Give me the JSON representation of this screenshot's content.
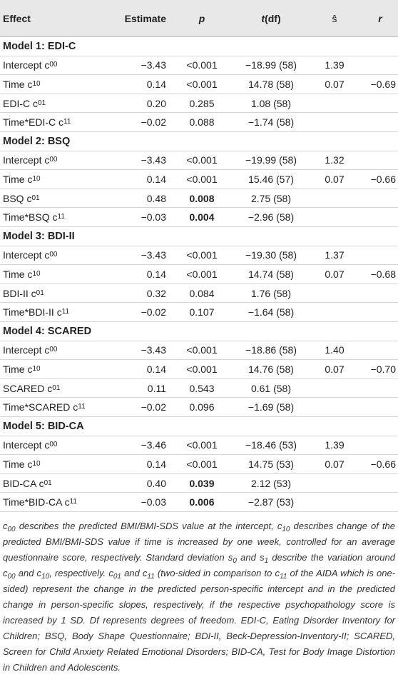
{
  "header": {
    "effect": "Effect",
    "estimate": "Estimate",
    "p": "p",
    "t": [
      "t",
      "(df)"
    ],
    "s": "ŝ",
    "r": "r"
  },
  "sections": [
    {
      "heading": "Model 1: EDI-C",
      "rows": [
        {
          "effect": [
            "Intercept c",
            "00"
          ],
          "estimate": "−3.43",
          "p": "<0.001",
          "t": "−18.99 (58)",
          "s": "1.39"
        },
        {
          "effect": [
            "Time c",
            "10"
          ],
          "estimate": "0.14",
          "p": "<0.001",
          "t": "14.78 (58)",
          "s": "0.07",
          "r": "−0.69"
        },
        {
          "effect": [
            "EDI-C c",
            "01"
          ],
          "estimate": "0.20",
          "p": "0.285",
          "t": "1.08 (58)"
        },
        {
          "effect": [
            "Time*EDI-C c",
            "11"
          ],
          "estimate": "−0.02",
          "p": "0.088",
          "t": "−1.74 (58)"
        }
      ]
    },
    {
      "heading": "Model 2: BSQ",
      "rows": [
        {
          "effect": [
            "Intercept c",
            "00"
          ],
          "estimate": "−3.43",
          "p": "<0.001",
          "t": "−19.99 (58)",
          "s": "1.32"
        },
        {
          "effect": [
            "Time c",
            "10"
          ],
          "estimate": "0.14",
          "p": "<0.001",
          "t": "15.46 (57)",
          "s": "0.07",
          "r": "−0.66"
        },
        {
          "effect": [
            "BSQ c",
            "01"
          ],
          "estimate": "0.48",
          "p": "0.008",
          "p_bold": true,
          "t": "2.75 (58)"
        },
        {
          "effect": [
            "Time*BSQ c",
            "11"
          ],
          "estimate": "−0.03",
          "p": "0.004",
          "p_bold": true,
          "t": "−2.96 (58)"
        }
      ]
    },
    {
      "heading": "Model 3: BDI-II",
      "rows": [
        {
          "effect": [
            "Intercept c",
            "00"
          ],
          "estimate": "−3.43",
          "p": "<0.001",
          "t": "−19.30 (58)",
          "s": "1.37"
        },
        {
          "effect": [
            "Time c",
            "10"
          ],
          "estimate": "0.14",
          "p": "<0.001",
          "t": "14.74 (58)",
          "s": "0.07",
          "r": "−0.68"
        },
        {
          "effect": [
            "BDI-II c",
            "01"
          ],
          "estimate": "0.32",
          "p": "0.084",
          "t": "1.76 (58)"
        },
        {
          "effect": [
            "Time*BDI-II c",
            "11"
          ],
          "estimate": "−0.02",
          "p": "0.107",
          "t": "−1.64 (58)"
        }
      ]
    },
    {
      "heading": "Model 4: SCARED",
      "rows": [
        {
          "effect": [
            "Intercept c",
            "00"
          ],
          "estimate": "−3.43",
          "p": "<0.001",
          "t": "−18.86 (58)",
          "s": "1.40"
        },
        {
          "effect": [
            "Time c",
            "10"
          ],
          "estimate": "0.14",
          "p": "<0.001",
          "t": "14.76 (58)",
          "s": "0.07",
          "r": "−0.70"
        },
        {
          "effect": [
            "SCARED c",
            "01"
          ],
          "estimate": "0.11",
          "p": "0.543",
          "t": "0.61 (58)"
        },
        {
          "effect": [
            "Time*SCARED c",
            "11"
          ],
          "estimate": "−0.02",
          "p": "0.096",
          "t": "−1.69 (58)"
        }
      ]
    },
    {
      "heading": "Model 5: BID-CA",
      "rows": [
        {
          "effect": [
            "Intercept c",
            "00"
          ],
          "estimate": "−3.46",
          "p": "<0.001",
          "t": "−18.46 (53)",
          "s": "1.39"
        },
        {
          "effect": [
            "Time c",
            "10"
          ],
          "estimate": "0.14",
          "p": "<0.001",
          "t": "14.75 (53)",
          "s": "0.07",
          "r": "−0.66"
        },
        {
          "effect": [
            "BID-CA c",
            "01"
          ],
          "estimate": "0.40",
          "p": "0.039",
          "p_bold": true,
          "t": "2.12 (53)"
        },
        {
          "effect": [
            "Time*BID-CA c",
            "11"
          ],
          "estimate": "−0.03",
          "p": "0.006",
          "p_bold": true,
          "t": "−2.87 (53)"
        }
      ]
    }
  ],
  "note": [
    "c",
    "00",
    " describes the predicted BMI/BMI-SDS value at the intercept, c",
    "10",
    " describes change of the predicted BMI/BMI-SDS value if time is increased by one week, controlled for an average questionnaire score, respectively. Standard deviation s",
    "0",
    " and s",
    "1",
    " describe the variation around c",
    "00",
    " and c",
    "10",
    ", respectively. c",
    "01",
    " and c",
    "11",
    " (two-sided in comparison to c",
    "11",
    " of the AIDA which is one-sided) represent the change in the predicted person-specific intercept and in the predicted change in person-specific slopes, respectively, if the respective psychopathology score is increased by 1 SD. Df represents degrees of freedom. EDI-C, Eating Disorder Inventory for Children; BSQ, Body Shape Questionnaire; BDI-II, Beck-Depression-Inventory-II; SCARED, Screen for Child Anxiety Related Emotional Disorders; BID-CA, Test for Body Image Distortion in Children and Adolescents."
  ]
}
